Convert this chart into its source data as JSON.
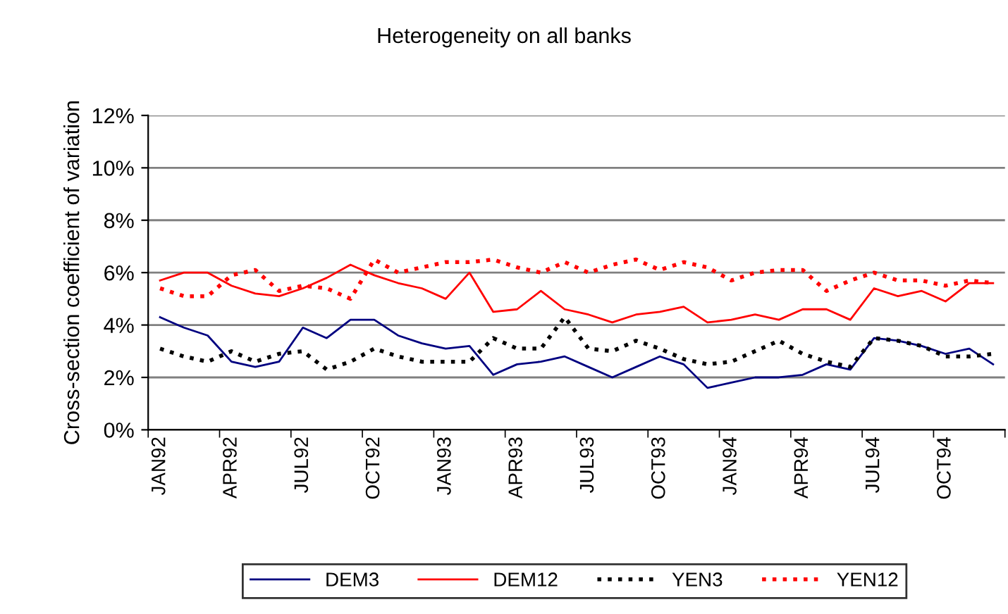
{
  "chart_data": {
    "type": "line",
    "title": "Heterogeneity on all banks",
    "ylabel": "Cross-section coefficient of variation",
    "categories": [
      "JAN92",
      null,
      null,
      "APR92",
      null,
      null,
      "JUL92",
      null,
      null,
      "OCT92",
      null,
      null,
      "JAN93",
      null,
      null,
      "APR93",
      null,
      null,
      "JUL93",
      null,
      null,
      "OCT93",
      null,
      null,
      "JAN94",
      null,
      null,
      "APR94",
      null,
      null,
      "JUL94",
      null,
      null,
      "OCT94",
      null,
      null
    ],
    "series": [
      {
        "name": "DEM3",
        "color": "#000080",
        "line_style": "solid",
        "values": [
          4.3,
          3.9,
          3.6,
          2.6,
          2.4,
          2.6,
          3.9,
          3.5,
          4.2,
          4.2,
          3.6,
          3.3,
          3.1,
          3.2,
          2.1,
          2.5,
          2.6,
          2.8,
          2.4,
          2.0,
          2.4,
          2.8,
          2.5,
          1.6,
          1.8,
          2.0,
          2.0,
          2.1,
          2.5,
          2.3,
          3.5,
          3.4,
          3.2,
          2.9,
          3.1,
          2.5
        ]
      },
      {
        "name": "DEM12",
        "color": "#ff0000",
        "line_style": "solid",
        "values": [
          5.7,
          6.0,
          6.0,
          5.5,
          5.2,
          5.1,
          5.4,
          5.8,
          6.3,
          5.9,
          5.6,
          5.4,
          5.0,
          6.0,
          4.5,
          4.6,
          5.3,
          4.6,
          4.4,
          4.1,
          4.4,
          4.5,
          4.7,
          4.1,
          4.2,
          4.4,
          4.2,
          4.6,
          4.6,
          4.2,
          5.4,
          5.1,
          5.3,
          4.9,
          5.6,
          5.6
        ]
      },
      {
        "name": "YEN3",
        "color": "#000000",
        "line_style": "dotted",
        "values": [
          3.1,
          2.8,
          2.6,
          3.0,
          2.6,
          2.9,
          3.0,
          2.3,
          2.6,
          3.1,
          2.8,
          2.6,
          2.6,
          2.6,
          3.5,
          3.1,
          3.1,
          4.3,
          3.1,
          3.0,
          3.4,
          3.1,
          2.7,
          2.5,
          2.6,
          3.0,
          3.4,
          2.9,
          2.6,
          2.4,
          3.5,
          3.4,
          3.2,
          2.8,
          2.8,
          2.9
        ]
      },
      {
        "name": "YEN12",
        "color": "#ff0000",
        "line_style": "dotted",
        "values": [
          5.4,
          5.1,
          5.1,
          5.9,
          6.1,
          5.3,
          5.5,
          5.4,
          5.0,
          6.5,
          6.0,
          6.2,
          6.4,
          6.4,
          6.5,
          6.2,
          6.0,
          6.4,
          6.0,
          6.3,
          6.5,
          6.1,
          6.4,
          6.2,
          5.7,
          6.0,
          6.1,
          6.1,
          5.3,
          5.7,
          6.0,
          5.7,
          5.7,
          5.5,
          5.7,
          5.6
        ]
      }
    ],
    "ylim": [
      0,
      12
    ],
    "yticks": [
      {
        "value": 0,
        "label": "0%"
      },
      {
        "value": 2,
        "label": "2%"
      },
      {
        "value": 4,
        "label": "4%"
      },
      {
        "value": 6,
        "label": "6%"
      },
      {
        "value": 8,
        "label": "8%"
      },
      {
        "value": 10,
        "label": "10%"
      },
      {
        "value": 12,
        "label": "12%"
      }
    ],
    "grid": "y",
    "legend": "bottom",
    "marker": "none"
  }
}
